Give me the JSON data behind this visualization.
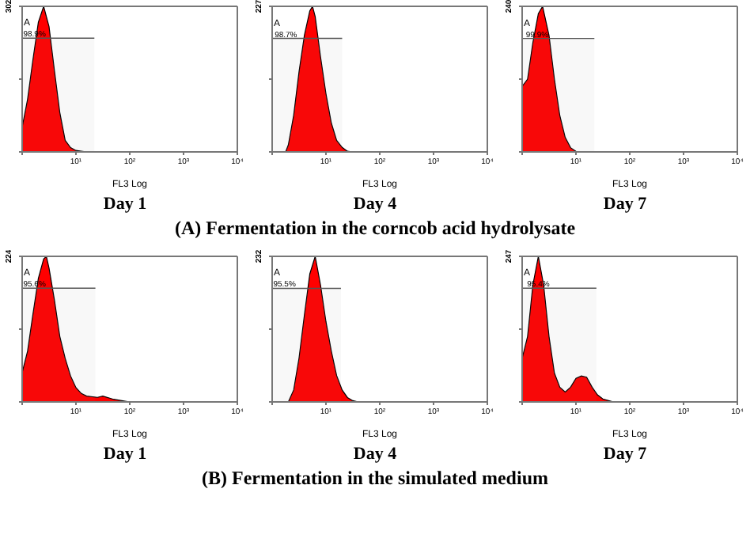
{
  "chart_data": [
    {
      "type": "area",
      "title": "Day 1",
      "xlabel": "FL3 Log",
      "color": "#ff0000",
      "log": "x",
      "xlim": [
        1,
        10000
      ],
      "xticks": [
        {
          "value": 1,
          "label": null
        },
        {
          "value": 10,
          "label": "10¹"
        },
        {
          "value": 100,
          "label": "10²"
        },
        {
          "value": 1000,
          "label": "10³"
        },
        {
          "value": 10000,
          "label": "10⁴"
        }
      ],
      "ylim": [
        0,
        302
      ],
      "yticks": [
        {
          "value": 0,
          "label": null
        },
        {
          "value": 151,
          "label": null
        },
        302
      ],
      "x": [
        1,
        1.26,
        1.58,
        2.0,
        2.51,
        3.16,
        3.98,
        5.01,
        6.31,
        7.94,
        10,
        15.8,
        100
      ],
      "values": [
        51,
        109,
        190,
        269,
        302,
        260,
        169,
        82,
        24,
        9,
        3,
        0,
        0
      ],
      "bands": [
        {
          "axis": "x",
          "from": 1,
          "to": 22,
          "label": "A"
        }
      ],
      "annotations": [
        {
          "text": "98.9%",
          "x": 1.7,
          "y": 236
        }
      ]
    },
    {
      "type": "area",
      "title": "Day 4",
      "xlabel": "FL3 Log",
      "color": "#ff0000",
      "log": "x",
      "xlim": [
        1,
        10000
      ],
      "xticks": [
        {
          "value": 1,
          "label": null
        },
        {
          "value": 10,
          "label": "10¹"
        },
        {
          "value": 100,
          "label": "10²"
        },
        {
          "value": 1000,
          "label": "10³"
        },
        {
          "value": 10000,
          "label": "10⁴"
        }
      ],
      "ylim": [
        0,
        227
      ],
      "yticks": [
        {
          "value": 0,
          "label": null
        },
        {
          "value": 113.5,
          "label": null
        },
        227
      ],
      "x": [
        1,
        1.78,
        2.0,
        2.51,
        3.16,
        3.98,
        5.01,
        5.62,
        6.31,
        7.94,
        10,
        12.6,
        15.8,
        20,
        25.1,
        31.6,
        100
      ],
      "values": [
        0,
        0,
        11,
        57,
        125,
        182,
        220,
        227,
        211,
        148,
        91,
        45,
        18,
        7,
        1,
        0,
        0
      ],
      "bands": [
        {
          "axis": "x",
          "from": 1,
          "to": 20,
          "label": "A"
        }
      ],
      "annotations": [
        {
          "text": "98.7%",
          "x": 1.8,
          "y": 177
        },
        "(A) Fermentation in the corncob acid hydrolysate"
      ]
    },
    {
      "type": "area",
      "title": "Day 7",
      "xlabel": "FL3 Log",
      "color": "#ff0000",
      "log": "x",
      "xlim": [
        1,
        10000
      ],
      "xticks": [
        {
          "value": 1,
          "label": null
        },
        {
          "value": 10,
          "label": "10¹"
        },
        {
          "value": 100,
          "label": "10²"
        },
        {
          "value": 1000,
          "label": "10³"
        },
        {
          "value": 10000,
          "label": "10⁴"
        }
      ],
      "ylim": [
        0,
        240
      ],
      "yticks": [
        {
          "value": 0,
          "label": null
        },
        {
          "value": 120,
          "label": null
        },
        240
      ],
      "x": [
        1,
        1.26,
        1.58,
        2.0,
        2.4,
        3.16,
        3.98,
        5.01,
        6.31,
        7.94,
        10,
        12.6,
        100
      ],
      "values": [
        108,
        120,
        180,
        228,
        240,
        192,
        120,
        60,
        24,
        7,
        1,
        0,
        0
      ],
      "bands": [
        {
          "axis": "x",
          "from": 1,
          "to": 22,
          "label": "A"
        }
      ],
      "annotations": [
        {
          "text": "99.9%",
          "x": 1.9,
          "y": 187
        }
      ]
    },
    {
      "type": "area",
      "title": "Day 1",
      "xlabel": "FL3 Log",
      "color": "#ff0000",
      "log": "x",
      "xlim": [
        1,
        10000
      ],
      "xticks": [
        {
          "value": 1,
          "label": null
        },
        {
          "value": 10,
          "label": "10¹"
        },
        {
          "value": 100,
          "label": "10²"
        },
        {
          "value": 1000,
          "label": "10³"
        },
        {
          "value": 10000,
          "label": "10⁴"
        }
      ],
      "ylim": [
        0,
        224
      ],
      "yticks": [
        {
          "value": 0,
          "label": null
        },
        {
          "value": 112,
          "label": null
        },
        224
      ],
      "x": [
        1,
        1.26,
        1.58,
        2.0,
        2.51,
        2.82,
        3.16,
        3.98,
        5.01,
        6.31,
        7.94,
        10,
        12.6,
        15.8,
        25.1,
        31.6,
        50.1,
        100
      ],
      "values": [
        45,
        78,
        134,
        190,
        220,
        224,
        206,
        157,
        101,
        67,
        40,
        22,
        13,
        9,
        7,
        9,
        4,
        0
      ],
      "bands": [
        {
          "axis": "x",
          "from": 1,
          "to": 23,
          "label": "A"
        }
      ],
      "annotations": [
        {
          "text": "95.6%",
          "x": 1.7,
          "y": 175
        }
      ]
    },
    {
      "type": "area",
      "title": "Day 4",
      "xlabel": "FL3 Log",
      "color": "#ff0000",
      "log": "x",
      "xlim": [
        1,
        10000
      ],
      "xticks": [
        {
          "value": 1,
          "label": null
        },
        {
          "value": 10,
          "label": "10¹"
        },
        {
          "value": 100,
          "label": "10²"
        },
        {
          "value": 1000,
          "label": "10³"
        },
        {
          "value": 10000,
          "label": "10⁴"
        }
      ],
      "ylim": [
        0,
        232
      ],
      "yticks": [
        {
          "value": 0,
          "label": null
        },
        {
          "value": 116,
          "label": null
        },
        232
      ],
      "x": [
        1,
        2.0,
        2.51,
        3.16,
        3.98,
        5.01,
        6.31,
        7.94,
        10,
        12.6,
        15.8,
        20,
        25.1,
        31.6,
        39.8,
        100
      ],
      "values": [
        0,
        0,
        19,
        70,
        139,
        204,
        232,
        186,
        128,
        81,
        42,
        19,
        7,
        2,
        0,
        0
      ],
      "bands": [
        {
          "axis": "x",
          "from": 1,
          "to": 19,
          "label": "A"
        }
      ],
      "annotations": [
        {
          "text": "95.5%",
          "x": 1.7,
          "y": 181
        },
        "(B) Fermentation in the simulated medium"
      ]
    },
    {
      "type": "area",
      "title": "Day 7",
      "xlabel": "FL3 Log",
      "color": "#ff0000",
      "log": "x",
      "xlim": [
        1,
        10000
      ],
      "xticks": [
        {
          "value": 1,
          "label": null
        },
        {
          "value": 10,
          "label": "10¹"
        },
        {
          "value": 100,
          "label": "10²"
        },
        {
          "value": 1000,
          "label": "10³"
        },
        {
          "value": 10000,
          "label": "10⁴"
        }
      ],
      "ylim": [
        0,
        247
      ],
      "yticks": [
        {
          "value": 0,
          "label": null
        },
        {
          "value": 123.5,
          "label": null
        },
        247
      ],
      "x": [
        1,
        1.26,
        1.58,
        2.0,
        2.51,
        3.16,
        3.98,
        5.01,
        6.31,
        7.94,
        10,
        12.6,
        15.8,
        20,
        25.1,
        31.6,
        50.1,
        100
      ],
      "values": [
        74,
        111,
        198,
        247,
        198,
        111,
        49,
        25,
        17,
        25,
        40,
        44,
        42,
        25,
        12,
        5,
        0,
        0
      ],
      "bands": [
        {
          "axis": "x",
          "from": 1,
          "to": 24,
          "label": "A"
        }
      ],
      "annotations": [
        {
          "text": "95.4%",
          "x": 2.0,
          "y": 193
        }
      ]
    }
  ]
}
